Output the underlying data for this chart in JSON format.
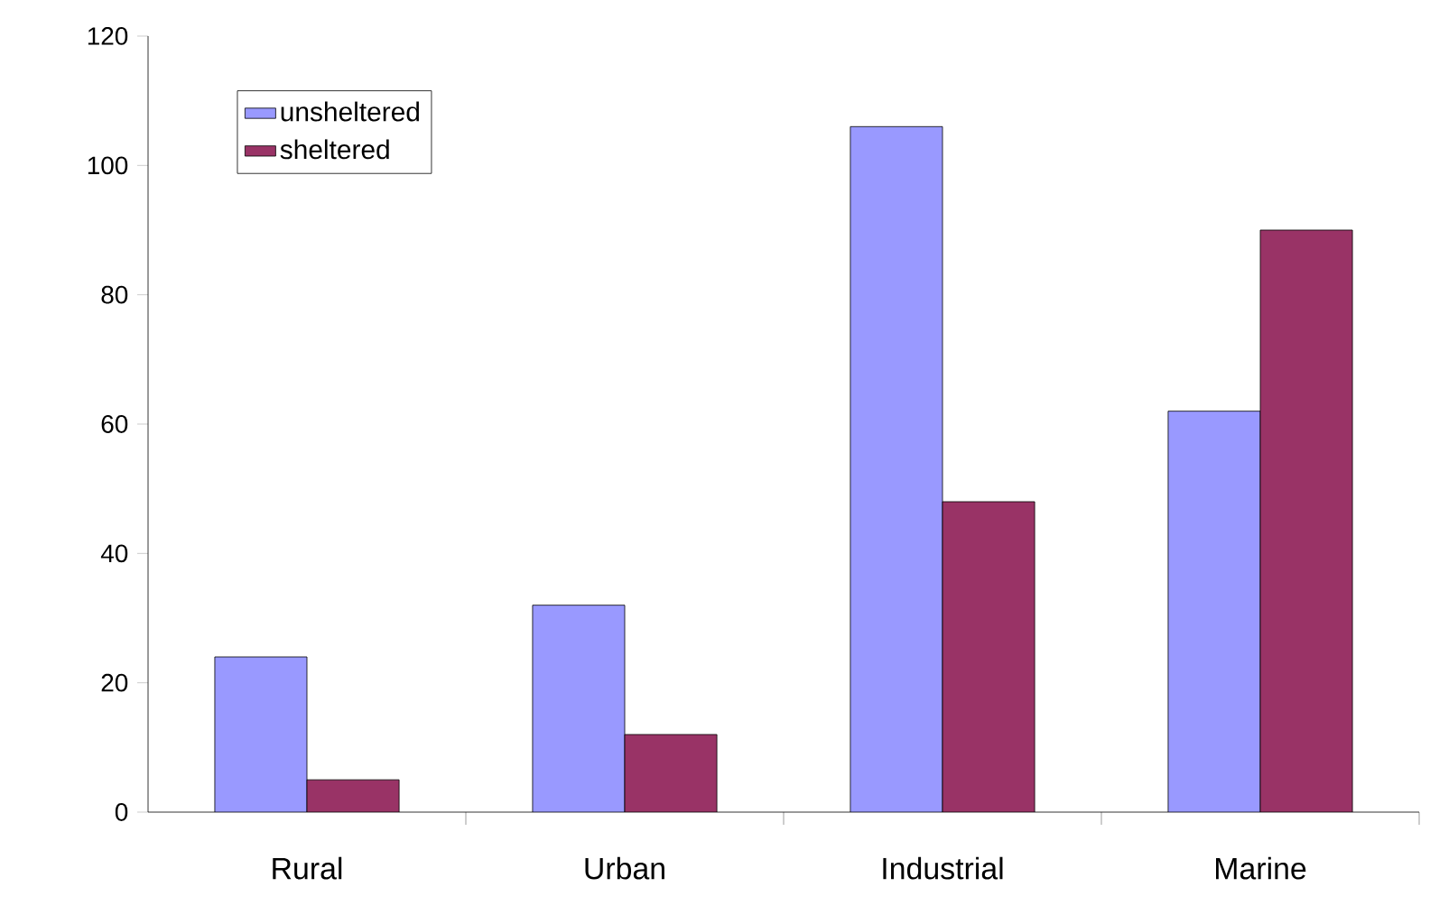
{
  "chart_data": {
    "type": "bar",
    "categories": [
      "Rural",
      "Urban",
      "Industrial",
      "Marine"
    ],
    "series": [
      {
        "name": "unsheltered",
        "color": "#9999ff",
        "values": [
          24,
          32,
          106,
          62
        ]
      },
      {
        "name": "sheltered",
        "color": "#993366",
        "values": [
          5,
          12,
          48,
          90
        ]
      }
    ],
    "ylim": [
      0,
      120
    ],
    "yticks": [
      0,
      20,
      40,
      60,
      80,
      100,
      120
    ],
    "legend": "top left"
  }
}
